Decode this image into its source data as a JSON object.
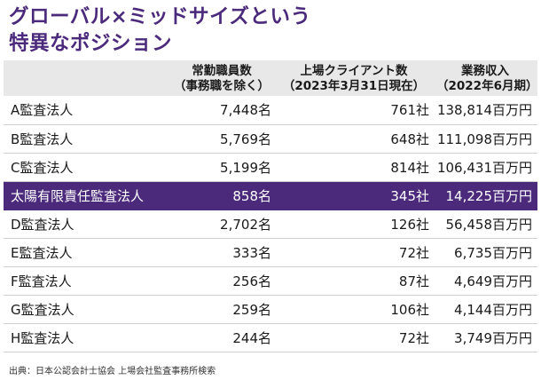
{
  "title": {
    "line1": "グローバル×ミッドサイズという",
    "line2": "特異なポジション"
  },
  "table": {
    "headers": [
      {
        "line1": "",
        "line2": ""
      },
      {
        "line1": "常勤職員数",
        "line2": "（事務職を除く）"
      },
      {
        "line1": "上場クライアント数",
        "line2": "（2023年3月31日現在）"
      },
      {
        "line1": "業務収入",
        "line2": "（2022年6月期）"
      }
    ],
    "rows": [
      {
        "name": "A監査法人",
        "staff": "7,448名",
        "clients": "761社",
        "revenue": "138,814百万円",
        "highlight": false
      },
      {
        "name": "B監査法人",
        "staff": "5,769名",
        "clients": "648社",
        "revenue": "111,098百万円",
        "highlight": false
      },
      {
        "name": "C監査法人",
        "staff": "5,199名",
        "clients": "814社",
        "revenue": "106,431百万円",
        "highlight": false
      },
      {
        "name": "太陽有限責任監査法人",
        "staff": "858名",
        "clients": "345社",
        "revenue": "14,225百万円",
        "highlight": true
      },
      {
        "name": "D監査法人",
        "staff": "2,702名",
        "clients": "126社",
        "revenue": "56,458百万円",
        "highlight": false
      },
      {
        "name": "E監査法人",
        "staff": "333名",
        "clients": "72社",
        "revenue": "6,735百万円",
        "highlight": false
      },
      {
        "name": "F監査法人",
        "staff": "256名",
        "clients": "87社",
        "revenue": "4,649百万円",
        "highlight": false
      },
      {
        "name": "G監査法人",
        "staff": "259名",
        "clients": "106社",
        "revenue": "4,144百万円",
        "highlight": false
      },
      {
        "name": "H監査法人",
        "staff": "244名",
        "clients": "72社",
        "revenue": "3,749百万円",
        "highlight": false
      }
    ]
  },
  "source": "出典：日本公認会計士協会 上場会社監査事務所検索",
  "colors": {
    "accent": "#4b2a7b",
    "header_bg": "#e8e8e8"
  }
}
